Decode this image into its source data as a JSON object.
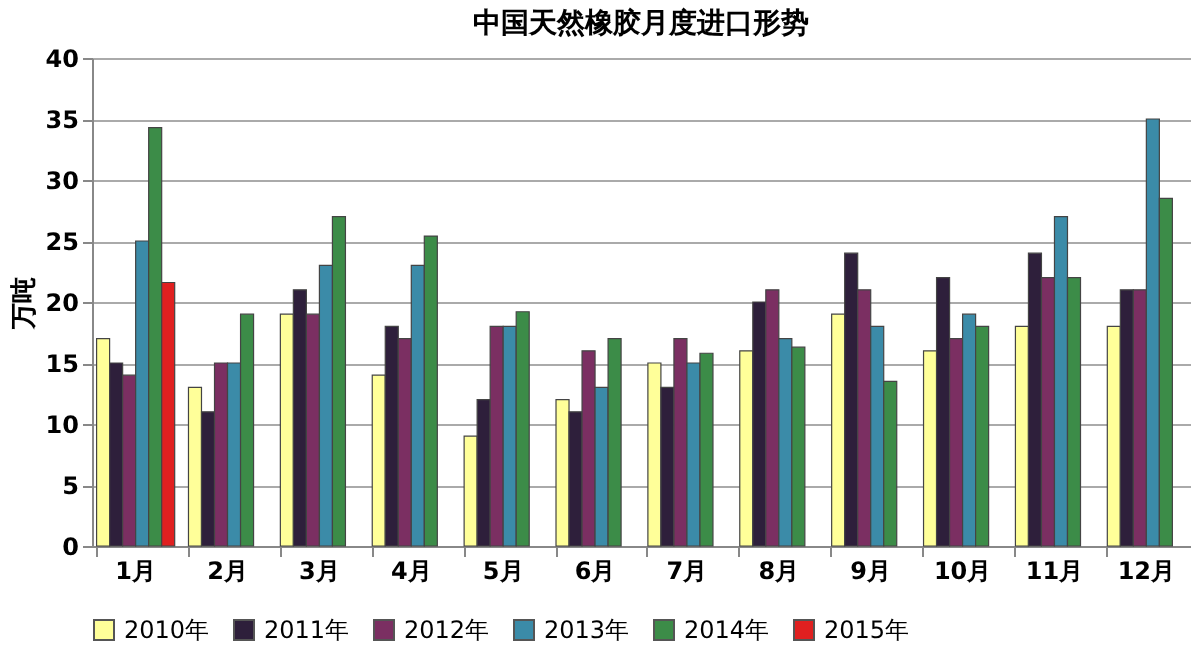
{
  "chart_data": {
    "type": "bar",
    "title": "中国天然橡胶月度进口形势",
    "ylabel": "万吨",
    "categories": [
      "1月",
      "2月",
      "3月",
      "4月",
      "5月",
      "6月",
      "7月",
      "8月",
      "9月",
      "10月",
      "11月",
      "12月"
    ],
    "series": [
      {
        "name": "2010年",
        "color": "#ffff99",
        "values": [
          17,
          13,
          19,
          14,
          9,
          12,
          15,
          16,
          19,
          16,
          18,
          18
        ]
      },
      {
        "name": "2011年",
        "color": "#2e1f3b",
        "values": [
          15,
          11,
          21,
          18,
          12,
          11,
          13,
          20,
          24,
          22,
          24,
          21
        ]
      },
      {
        "name": "2012年",
        "color": "#7b2f62",
        "values": [
          14,
          15,
          19,
          17,
          18,
          16,
          17,
          21,
          21,
          17,
          22,
          21
        ]
      },
      {
        "name": "2013年",
        "color": "#3b8ba8",
        "values": [
          25,
          15,
          23,
          23,
          18,
          13,
          15,
          17,
          18,
          19,
          27,
          35
        ]
      },
      {
        "name": "2014年",
        "color": "#3c8c48",
        "values": [
          34.3,
          19,
          27,
          25.4,
          19.2,
          17,
          15.8,
          16.3,
          13.5,
          18,
          22,
          28.5
        ]
      },
      {
        "name": "2015年",
        "color": "#e02020",
        "values": [
          21.6,
          null,
          null,
          null,
          null,
          null,
          null,
          null,
          null,
          null,
          null,
          null
        ]
      }
    ],
    "ylim": [
      0,
      40
    ],
    "yticks": [
      0,
      5,
      10,
      15,
      20,
      25,
      30,
      35,
      40
    ],
    "grid": "y",
    "legend": "bottom"
  }
}
